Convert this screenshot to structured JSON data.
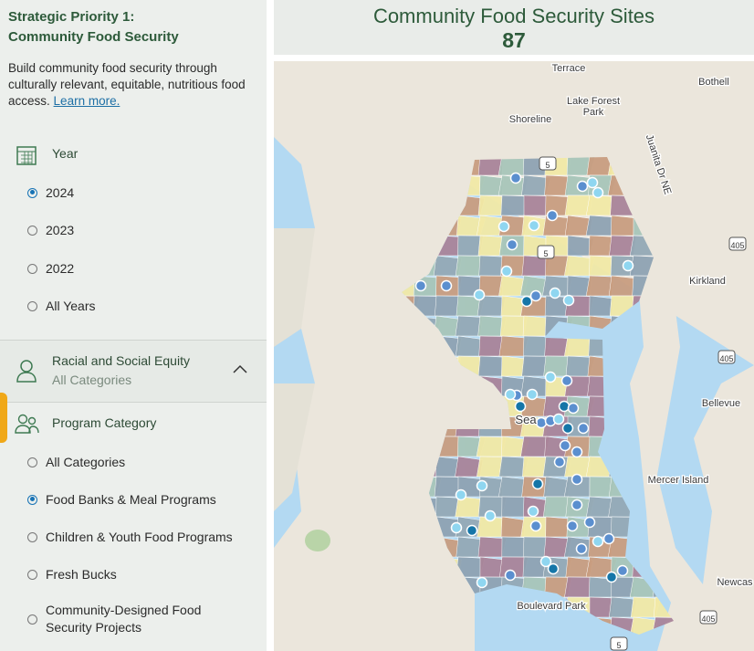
{
  "sidebar": {
    "title_line1": "Strategic Priority 1:",
    "title_line2": "Community Food Security",
    "description": "Build community food security through culturally relevant, equitable, nutritious food access.",
    "learn_more": "Learn more.",
    "year": {
      "label": "Year",
      "options": [
        "2024",
        "2023",
        "2022",
        "All Years"
      ],
      "selected": 0
    },
    "equity": {
      "label": "Racial and Social Equity",
      "value": "All Categories"
    },
    "program": {
      "label": "Program Category",
      "options": [
        "All Categories",
        "Food Banks & Meal Programs",
        "Children & Youth Food Programs",
        "Fresh Bucks",
        "Community-Designed Food Security Projects"
      ],
      "selected": 1
    }
  },
  "header": {
    "title": "Community Food Security Sites",
    "count": 87
  },
  "map": {
    "labels": [
      "Terrace",
      "Bothell",
      "Lake Forest",
      "Park",
      "Shoreline",
      "Kirkland",
      "Bellevue",
      "Mercer Island",
      "Newcas",
      "Boulevard Park",
      "Sea",
      "Juanita Dr NE",
      "405",
      "405",
      "405",
      "5",
      "5",
      "5"
    ]
  }
}
